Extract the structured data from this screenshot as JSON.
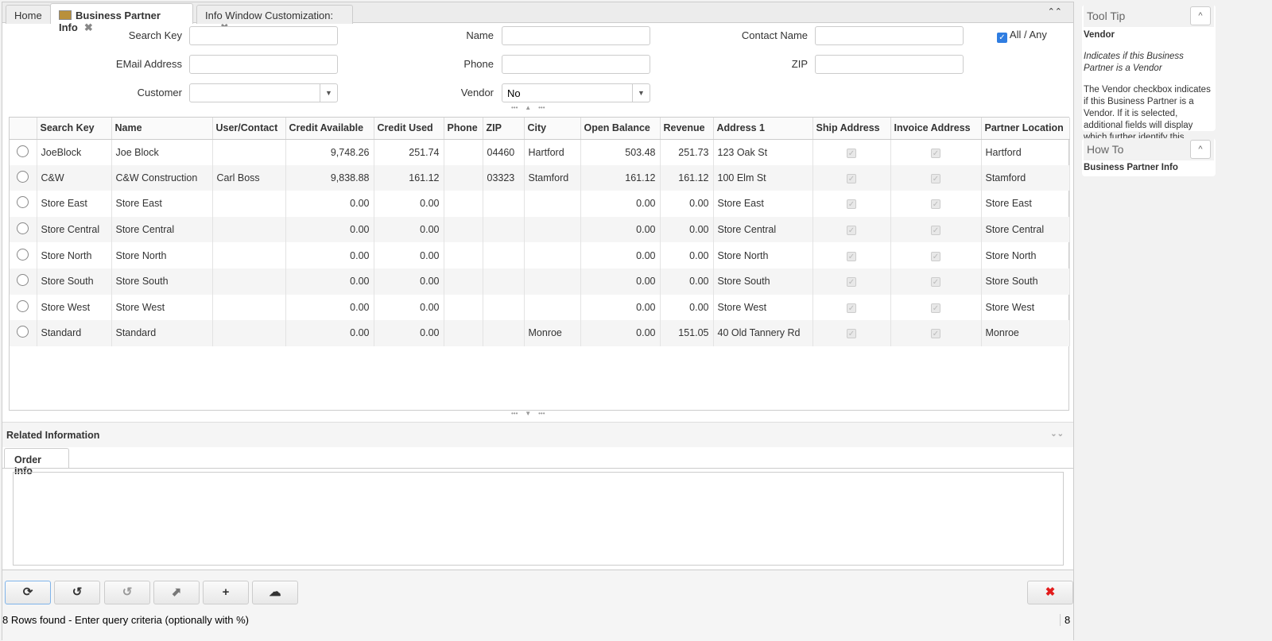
{
  "tabs": [
    {
      "label": "Home"
    },
    {
      "label": "Business Partner Info",
      "active": true
    },
    {
      "label": "Info Window Customization: ..."
    }
  ],
  "form": {
    "search_key": {
      "label": "Search Key",
      "value": ""
    },
    "name": {
      "label": "Name",
      "value": ""
    },
    "contact_name": {
      "label": "Contact Name",
      "value": ""
    },
    "all_any": {
      "label": "All / Any",
      "checked": true
    },
    "email": {
      "label": "EMail Address",
      "value": ""
    },
    "phone": {
      "label": "Phone",
      "value": ""
    },
    "zip": {
      "label": "ZIP",
      "value": ""
    },
    "customer": {
      "label": "Customer",
      "value": ""
    },
    "vendor": {
      "label": "Vendor",
      "value": "No"
    }
  },
  "grid": {
    "columns": [
      "",
      "Search Key",
      "Name",
      "User/Contact",
      "Credit Available",
      "Credit Used",
      "Phone",
      "ZIP",
      "City",
      "Open Balance",
      "Revenue",
      "Address 1",
      "Ship Address",
      "Invoice Address",
      "Partner Location"
    ],
    "rows": [
      [
        "JoeBlock",
        "Joe Block",
        "",
        "9,748.26",
        "251.74",
        "",
        "04460",
        "Hartford",
        "503.48",
        "251.73",
        "123 Oak St",
        true,
        true,
        "Hartford"
      ],
      [
        "C&W",
        "C&W Construction",
        "Carl Boss",
        "9,838.88",
        "161.12",
        "",
        "03323",
        "Stamford",
        "161.12",
        "161.12",
        "100 Elm St",
        true,
        true,
        "Stamford"
      ],
      [
        "Store East",
        "Store East",
        "",
        "0.00",
        "0.00",
        "",
        "",
        "",
        "0.00",
        "0.00",
        "Store East",
        true,
        true,
        "Store East"
      ],
      [
        "Store Central",
        "Store Central",
        "",
        "0.00",
        "0.00",
        "",
        "",
        "",
        "0.00",
        "0.00",
        "Store Central",
        true,
        true,
        "Store Central"
      ],
      [
        "Store North",
        "Store North",
        "",
        "0.00",
        "0.00",
        "",
        "",
        "",
        "0.00",
        "0.00",
        "Store North",
        true,
        true,
        "Store North"
      ],
      [
        "Store South",
        "Store South",
        "",
        "0.00",
        "0.00",
        "",
        "",
        "",
        "0.00",
        "0.00",
        "Store South",
        true,
        true,
        "Store South"
      ],
      [
        "Store West",
        "Store West",
        "",
        "0.00",
        "0.00",
        "",
        "",
        "",
        "0.00",
        "0.00",
        "Store West",
        true,
        true,
        "Store West"
      ],
      [
        "Standard",
        "Standard",
        "",
        "0.00",
        "0.00",
        "",
        "",
        "Monroe",
        "0.00",
        "151.05",
        "40 Old Tannery Rd",
        true,
        true,
        "Monroe"
      ]
    ]
  },
  "related": {
    "title": "Related Information",
    "tab": "Order Info"
  },
  "toolbar": [
    "refresh-icon",
    "reset-icon",
    "history-icon",
    "zoom-icon",
    "new-icon",
    "export-icon",
    "cancel-icon"
  ],
  "status": {
    "text": "8 Rows found - Enter query criteria (optionally with %)",
    "count": "8"
  },
  "tooltip": {
    "title": "Tool Tip",
    "heading": "Vendor",
    "italic": "Indicates if this Business Partner is a Vendor",
    "body": "The Vendor checkbox indicates if this Business Partner is a Vendor. If it is selected, additional fields will display which further identify this vendor."
  },
  "howto": {
    "title": "How To",
    "body": "Business Partner Info"
  }
}
